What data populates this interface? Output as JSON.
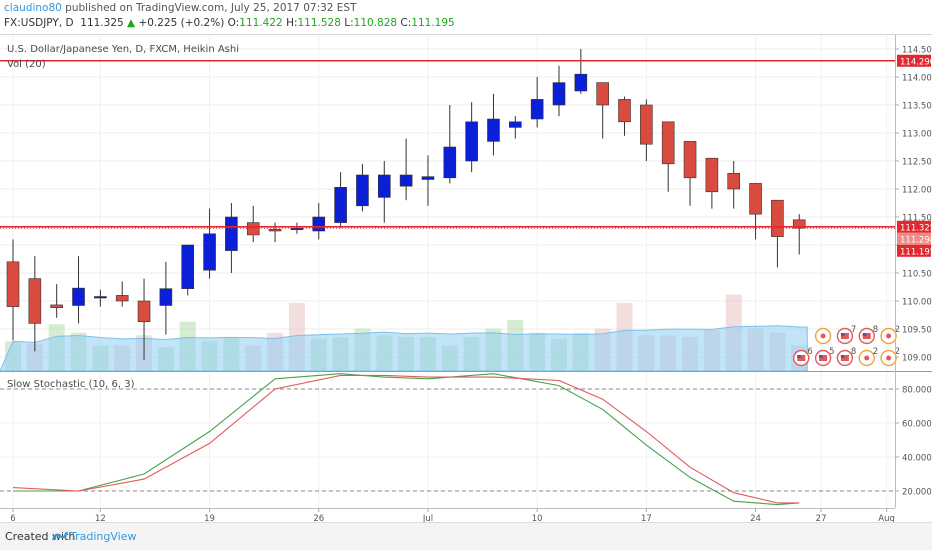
{
  "header": {
    "user": "claudino80",
    "published": " published on TradingView.com, July 25, 2017 07:32 EST",
    "symbol": "FX:USDJPY, D",
    "last": "111.325",
    "change_arrow": "▲",
    "change": "+0.225 (+0.2%)",
    "open_label": "O:",
    "open": "111.422",
    "high_label": "H:",
    "high": "111.528",
    "low_label": "L:",
    "low": "110.828",
    "close_label": "C:",
    "close": "111.195"
  },
  "footer": {
    "created_with": "Created with",
    "brand": "TradingView"
  },
  "colors": {
    "bull": "#0a1fd6",
    "bear": "#d94b3f",
    "hline": "#e3272f",
    "stoch_k": "#49a24a",
    "stoch_d": "#e2595a",
    "vol_ma": "#90cdf2",
    "axis_text": "#555555"
  },
  "chart_data": [
    {
      "type": "candlestick",
      "title": "U.S. Dollar/Japanese Yen, D, FXCM, Heikin Ashi",
      "indicator_label": "Vol (20)",
      "x_ticks": [
        "6",
        "12",
        "19",
        "26",
        "Jul",
        "10",
        "17",
        "24",
        "27",
        "Aug"
      ],
      "y_ticks": [
        "114.500",
        "114.000",
        "113.500",
        "113.000",
        "112.500",
        "112.000",
        "111.500",
        "111.000",
        "110.500",
        "110.000",
        "109.500",
        "109.000"
      ],
      "ylim": [
        108.75,
        114.75
      ],
      "candles": [
        {
          "o": 110.7,
          "c": 109.9,
          "h": 111.1,
          "l": 109.3
        },
        {
          "o": 110.4,
          "c": 109.6,
          "h": 110.8,
          "l": 109.1
        },
        {
          "o": 109.93,
          "c": 109.88,
          "h": 110.3,
          "l": 109.7
        },
        {
          "o": 109.92,
          "c": 110.23,
          "h": 110.8,
          "l": 109.6
        },
        {
          "o": 110.08,
          "c": 110.08,
          "h": 110.2,
          "l": 109.9
        },
        {
          "o": 110.1,
          "c": 110.0,
          "h": 110.35,
          "l": 109.9
        },
        {
          "o": 110.0,
          "c": 109.63,
          "h": 110.4,
          "l": 108.95
        },
        {
          "o": 109.92,
          "c": 110.22,
          "h": 110.7,
          "l": 109.4
        },
        {
          "o": 110.22,
          "c": 111.0,
          "h": 111.0,
          "l": 110.1
        },
        {
          "o": 110.55,
          "c": 111.2,
          "h": 111.65,
          "l": 110.4
        },
        {
          "o": 110.9,
          "c": 111.5,
          "h": 111.75,
          "l": 110.5
        },
        {
          "o": 111.4,
          "c": 111.18,
          "h": 111.7,
          "l": 111.05
        },
        {
          "o": 111.28,
          "c": 111.25,
          "h": 111.4,
          "l": 111.05
        },
        {
          "o": 111.3,
          "c": 111.3,
          "h": 111.4,
          "l": 111.2
        },
        {
          "o": 111.25,
          "c": 111.5,
          "h": 111.75,
          "l": 111.1
        },
        {
          "o": 111.4,
          "c": 112.03,
          "h": 112.3,
          "l": 111.3
        },
        {
          "o": 111.7,
          "c": 112.25,
          "h": 112.45,
          "l": 111.6
        },
        {
          "o": 111.85,
          "c": 112.25,
          "h": 112.5,
          "l": 111.4
        },
        {
          "o": 112.05,
          "c": 112.25,
          "h": 112.9,
          "l": 111.8
        },
        {
          "o": 112.17,
          "c": 112.22,
          "h": 112.6,
          "l": 111.7
        },
        {
          "o": 112.2,
          "c": 112.75,
          "h": 113.5,
          "l": 112.1
        },
        {
          "o": 112.5,
          "c": 113.2,
          "h": 113.55,
          "l": 112.3
        },
        {
          "o": 112.85,
          "c": 113.25,
          "h": 113.7,
          "l": 112.6
        },
        {
          "o": 113.1,
          "c": 113.2,
          "h": 113.3,
          "l": 112.9
        },
        {
          "o": 113.25,
          "c": 113.6,
          "h": 114.0,
          "l": 113.1
        },
        {
          "o": 113.5,
          "c": 113.9,
          "h": 114.2,
          "l": 113.3
        },
        {
          "o": 113.75,
          "c": 114.05,
          "h": 114.5,
          "l": 113.7
        },
        {
          "o": 113.9,
          "c": 113.5,
          "h": 113.9,
          "l": 112.9
        },
        {
          "o": 113.6,
          "c": 113.2,
          "h": 113.65,
          "l": 112.95
        },
        {
          "o": 113.5,
          "c": 112.8,
          "h": 113.6,
          "l": 112.5
        },
        {
          "o": 113.2,
          "c": 112.45,
          "h": 113.2,
          "l": 111.95
        },
        {
          "o": 112.85,
          "c": 112.2,
          "h": 112.85,
          "l": 111.7
        },
        {
          "o": 112.55,
          "c": 111.95,
          "h": 112.55,
          "l": 111.65
        },
        {
          "o": 112.28,
          "c": 112.0,
          "h": 112.5,
          "l": 111.65
        },
        {
          "o": 112.1,
          "c": 111.55,
          "h": 112.1,
          "l": 111.1
        },
        {
          "o": 111.8,
          "c": 111.15,
          "h": 111.8,
          "l": 110.6
        },
        {
          "o": 111.45,
          "c": 111.3,
          "h": 111.55,
          "l": 110.83
        }
      ],
      "volume": [
        0.35,
        0.32,
        0.55,
        0.45,
        0.3,
        0.3,
        0.42,
        0.28,
        0.58,
        0.35,
        0.4,
        0.3,
        0.45,
        0.8,
        0.38,
        0.4,
        0.5,
        0.42,
        0.4,
        0.4,
        0.3,
        0.4,
        0.5,
        0.6,
        0.45,
        0.38,
        0.45,
        0.5,
        0.8,
        0.42,
        0.42,
        0.4,
        0.48,
        0.9,
        0.5,
        0.45,
        0.3
      ],
      "volume_bull_flags": [
        1,
        0,
        1,
        1,
        1,
        0,
        0,
        1,
        1,
        1,
        1,
        0,
        0,
        0,
        1,
        1,
        1,
        1,
        1,
        1,
        1,
        1,
        1,
        1,
        1,
        1,
        1,
        0,
        0,
        0,
        0,
        0,
        0,
        0,
        0,
        0,
        0
      ],
      "hlines": [
        114.29,
        111.325,
        111.298
      ],
      "price_labels": [
        {
          "value": 114.29,
          "text": "114.290"
        },
        {
          "value": 111.325,
          "text": "111.325"
        },
        {
          "value": 111.298,
          "text": "111.298"
        },
        {
          "value": 111.195,
          "text": "111.195"
        }
      ],
      "events": [
        {
          "day": 37,
          "row": 0,
          "kind": "orange",
          "n": ""
        },
        {
          "day": 38,
          "row": 0,
          "kind": "flag",
          "n": "7"
        },
        {
          "day": 39,
          "row": 0,
          "kind": "flag",
          "n": "8"
        },
        {
          "day": 40,
          "row": 0,
          "kind": "orange",
          "n": "2"
        },
        {
          "day": 36,
          "row": 1,
          "kind": "flag",
          "n": "6"
        },
        {
          "day": 37,
          "row": 1,
          "kind": "flag",
          "n": "5"
        },
        {
          "day": 38,
          "row": 1,
          "kind": "flag",
          "n": "8"
        },
        {
          "day": 39,
          "row": 1,
          "kind": "orange",
          "n": "2"
        },
        {
          "day": 40,
          "row": 1,
          "kind": "orange",
          "n": "2"
        }
      ]
    },
    {
      "type": "line",
      "title": "Slow Stochastic (10, 6, 3)",
      "y_ticks": [
        "80.0000",
        "60.0000",
        "40.0000",
        "20.0000"
      ],
      "ylim": [
        10,
        90
      ],
      "levels": [
        80,
        20
      ],
      "series": [
        {
          "name": "%K",
          "x": [
            0,
            3,
            6,
            9,
            12,
            15,
            17,
            19,
            22,
            25,
            27,
            29,
            31,
            33,
            35,
            36
          ],
          "values": [
            20,
            20,
            30,
            55,
            86,
            89,
            87,
            86,
            89,
            82,
            68,
            47,
            28,
            14,
            12,
            13
          ]
        },
        {
          "name": "%D",
          "x": [
            0,
            3,
            6,
            9,
            12,
            15,
            17,
            19,
            22,
            25,
            27,
            29,
            31,
            33,
            35,
            36
          ],
          "values": [
            22,
            20,
            27,
            48,
            80,
            88,
            88,
            87,
            87,
            85,
            74,
            55,
            34,
            19,
            13,
            13
          ]
        }
      ]
    }
  ]
}
